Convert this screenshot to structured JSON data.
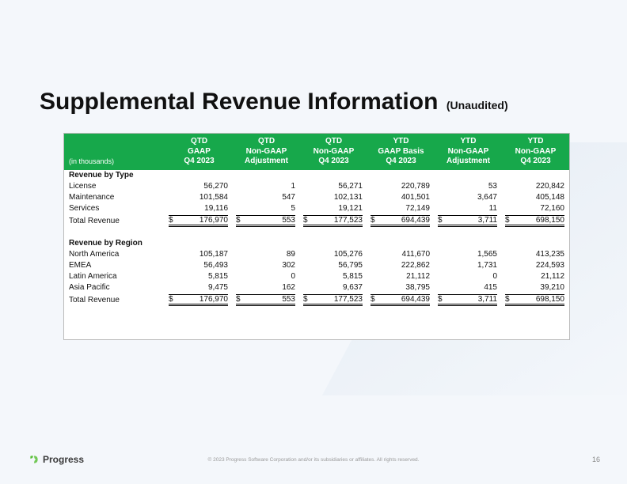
{
  "title": "Supplemental Revenue Information",
  "subtitle": "(Unaudited)",
  "header_bg": "#17a84b",
  "units_label": "(in thousands)",
  "columns": [
    {
      "l1": "QTD",
      "l2": "GAAP",
      "l3": "Q4 2023"
    },
    {
      "l1": "QTD",
      "l2": "Non-GAAP",
      "l3": "Adjustment"
    },
    {
      "l1": "QTD",
      "l2": "Non-GAAP",
      "l3": "Q4 2023"
    },
    {
      "l1": "YTD",
      "l2": "GAAP Basis",
      "l3": "Q4 2023"
    },
    {
      "l1": "YTD",
      "l2": "Non-GAAP",
      "l3": "Adjustment"
    },
    {
      "l1": "YTD",
      "l2": "Non-GAAP",
      "l3": "Q4 2023"
    }
  ],
  "sections": [
    {
      "heading": "Revenue by Type",
      "rows": [
        {
          "label": "License",
          "v": [
            "56,270",
            "1",
            "56,271",
            "220,789",
            "53",
            "220,842"
          ]
        },
        {
          "label": "Maintenance",
          "v": [
            "101,584",
            "547",
            "102,131",
            "401,501",
            "3,647",
            "405,148"
          ]
        },
        {
          "label": "Services",
          "v": [
            "19,116",
            "5",
            "19,121",
            "72,149",
            "11",
            "72,160"
          ]
        }
      ],
      "total": {
        "label": "Total Revenue",
        "v": [
          "176,970",
          "553",
          "177,523",
          "694,439",
          "3,711",
          "698,150"
        ]
      }
    },
    {
      "heading": "Revenue by Region",
      "rows": [
        {
          "label": "North America",
          "v": [
            "105,187",
            "89",
            "105,276",
            "411,670",
            "1,565",
            "413,235"
          ]
        },
        {
          "label": "EMEA",
          "v": [
            "56,493",
            "302",
            "56,795",
            "222,862",
            "1,731",
            "224,593"
          ]
        },
        {
          "label": "Latin America",
          "v": [
            "5,815",
            "0",
            "5,815",
            "21,112",
            "0",
            "21,112"
          ]
        },
        {
          "label": "Asia Pacific",
          "v": [
            "9,475",
            "162",
            "9,637",
            "38,795",
            "415",
            "39,210"
          ]
        }
      ],
      "total": {
        "label": "Total Revenue",
        "v": [
          "176,970",
          "553",
          "177,523",
          "694,439",
          "3,711",
          "698,150"
        ]
      }
    }
  ],
  "logo_text": "Progress",
  "copyright": "© 2023 Progress Software Corporation and/or its subsidiaries or affiliates. All rights reserved.",
  "page_number": "16",
  "currency": "$"
}
